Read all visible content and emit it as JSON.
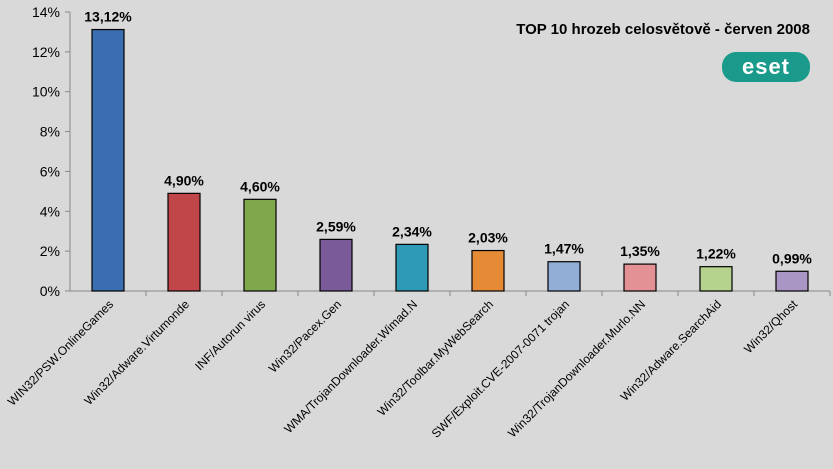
{
  "chart_data": {
    "type": "bar",
    "title": "TOP 10 hrozeb celosvětově - červen 2008",
    "xlabel": "",
    "ylabel": "",
    "ylim": [
      0,
      14
    ],
    "yticks": [
      "0%",
      "2%",
      "4%",
      "6%",
      "8%",
      "10%",
      "12%",
      "14%"
    ],
    "ytick_values": [
      0,
      2,
      4,
      6,
      8,
      10,
      12,
      14
    ],
    "categories": [
      "WIN32/PSW.OnlineGames",
      "Win32/Adware.Virtumonde",
      "INF/Autorun virus",
      "Win32/Pacex.Gen",
      "WMA/TrojanDownloader.Wimad.N",
      "Win32/Toolbar.MyWebSearch",
      "SWF/Exploit.CVE-2007-0071 trojan",
      "Win32/TrojanDownloader.Murlo.NN",
      "Win32/Adware.SearchAid",
      "Win32/Qhost"
    ],
    "values": [
      13.12,
      4.9,
      4.6,
      2.59,
      2.34,
      2.03,
      1.47,
      1.35,
      1.22,
      0.99
    ],
    "value_labels": [
      "13,12%",
      "4,90%",
      "4,60%",
      "2,59%",
      "2,34%",
      "2,03%",
      "1,47%",
      "1,35%",
      "1,22%",
      "0,99%"
    ],
    "colors": [
      "#3a6eb0",
      "#c0464a",
      "#7fa84c",
      "#7a5a98",
      "#2f9ab8",
      "#e58a35",
      "#93aed6",
      "#e39194",
      "#b5d38c",
      "#a996c4"
    ],
    "grid": false,
    "legend": "none"
  },
  "logo": {
    "text": "eset",
    "color": "#1a9a8a"
  }
}
